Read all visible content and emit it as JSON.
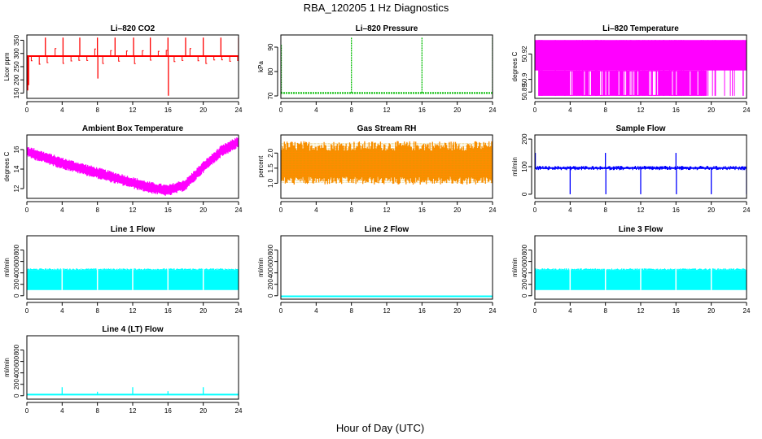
{
  "figure": {
    "title": "RBA_120205  1 Hz Diagnostics",
    "xlabel": "Hour of Day (UTC)"
  },
  "chart_data": [
    {
      "type": "line",
      "title": "Li–820 CO2",
      "ylabel": "Licor ppm",
      "color": "#ff0000",
      "xlim": [
        0,
        24
      ],
      "ylim": [
        130,
        370
      ],
      "yticks": [
        150,
        200,
        250,
        300,
        350
      ],
      "xticks": [
        0,
        4,
        8,
        12,
        16,
        20,
        24
      ],
      "baseline": 290,
      "band": [
        0,
        0
      ],
      "spikes": [
        [
          0.1,
          160
        ],
        [
          0.2,
          180
        ],
        [
          2.1,
          360
        ],
        [
          4.1,
          360
        ],
        [
          6.0,
          360
        ],
        [
          8.0,
          360
        ],
        [
          8.05,
          205
        ],
        [
          10.0,
          360
        ],
        [
          12.1,
          360
        ],
        [
          14.0,
          360
        ],
        [
          16.0,
          360
        ],
        [
          16.05,
          140
        ],
        [
          18.0,
          360
        ],
        [
          20.0,
          360
        ],
        [
          22.0,
          360
        ],
        [
          24.0,
          360
        ]
      ]
    },
    {
      "type": "line",
      "title": "Li–820 Pressure",
      "ylabel": "kPa",
      "color": "#00bb00",
      "xlim": [
        0,
        24
      ],
      "ylim": [
        69,
        95
      ],
      "yticks": [
        70,
        80,
        90
      ],
      "xticks": [
        0,
        4,
        8,
        12,
        16,
        20,
        24
      ],
      "baseline": 71.2,
      "band": [
        0,
        0
      ],
      "spikes": [
        [
          0.05,
          91
        ],
        [
          8.0,
          94
        ],
        [
          16.0,
          94
        ],
        [
          24.0,
          94
        ]
      ]
    },
    {
      "type": "area",
      "title": "Li–820 Temperature",
      "ylabel": "degrees C",
      "color": "#ff00ff",
      "xlim": [
        0,
        24
      ],
      "ylim": [
        50.885,
        50.935
      ],
      "yticks": [
        50.89,
        50.9,
        50.92
      ],
      "yticklabels": [
        "50.89",
        "50.9",
        "50.92"
      ],
      "xticks": [
        0,
        4,
        8,
        12,
        16,
        20,
        24
      ],
      "levels": [
        50.887,
        50.907,
        50.931
      ]
    },
    {
      "type": "area",
      "title": "Ambient Box Temperature",
      "ylabel": "degrees C",
      "color": "#ff00ff",
      "xlim": [
        0,
        24
      ],
      "ylim": [
        11,
        17.5
      ],
      "yticks": [
        12,
        14,
        16
      ],
      "xticks": [
        0,
        4,
        8,
        12,
        16,
        20,
        24
      ],
      "curve": [
        [
          0,
          15.8
        ],
        [
          2,
          15.2
        ],
        [
          4,
          14.6
        ],
        [
          6,
          14.1
        ],
        [
          8,
          13.6
        ],
        [
          10,
          13.1
        ],
        [
          12,
          12.6
        ],
        [
          14,
          12.1
        ],
        [
          16,
          11.8
        ],
        [
          18,
          12.4
        ],
        [
          20,
          14.2
        ],
        [
          22,
          15.8
        ],
        [
          24,
          16.8
        ]
      ],
      "band": [
        0.6,
        0.6
      ]
    },
    {
      "type": "area",
      "title": "Gas Stream RH",
      "ylabel": "percent",
      "color": "#ff8c00",
      "xlim": [
        0,
        24
      ],
      "ylim": [
        0.5,
        2.6
      ],
      "yticks": [
        1.0,
        1.5,
        2.0
      ],
      "yticklabels": [
        "1.0",
        "1.5",
        "2.0"
      ],
      "xticks": [
        0,
        4,
        8,
        12,
        16,
        20,
        24
      ],
      "curve": [
        [
          0,
          1.6
        ],
        [
          24,
          1.6
        ]
      ],
      "band": [
        0.8,
        0.65
      ]
    },
    {
      "type": "line",
      "title": "Sample Flow",
      "ylabel": "ml/min",
      "color": "#0000ff",
      "xlim": [
        0,
        24
      ],
      "ylim": [
        -15,
        215
      ],
      "yticks": [
        0,
        100,
        200
      ],
      "xticks": [
        0,
        4,
        8,
        12,
        16,
        20,
        24
      ],
      "baseline": 95,
      "band": [
        8,
        8
      ],
      "spikes": [
        [
          0.05,
          150
        ],
        [
          4.0,
          0
        ],
        [
          8.0,
          150
        ],
        [
          8.05,
          0
        ],
        [
          12.0,
          0
        ],
        [
          16.0,
          150
        ],
        [
          16.05,
          0
        ],
        [
          20.0,
          0
        ],
        [
          24.0,
          0
        ]
      ]
    },
    {
      "type": "area",
      "title": "Line 1 Flow",
      "ylabel": "ml/min",
      "color": "#00ffff",
      "xlim": [
        0,
        24
      ],
      "ylim": [
        -60,
        1050
      ],
      "yticks": [
        0,
        200,
        400,
        600,
        800
      ],
      "xticks": [
        0,
        4,
        8,
        12,
        16,
        20,
        24
      ],
      "range": [
        100,
        450
      ],
      "gaps": [
        4.0,
        8.0,
        12.0,
        16.0,
        20.0
      ]
    },
    {
      "type": "line",
      "title": "Line 2 Flow",
      "ylabel": "ml/min",
      "color": "#00ffff",
      "xlim": [
        0,
        24
      ],
      "ylim": [
        -60,
        1050
      ],
      "yticks": [
        0,
        200,
        400,
        600,
        800
      ],
      "xticks": [
        0,
        4,
        8,
        12,
        16,
        20,
        24
      ],
      "baseline": -10,
      "band": [
        0,
        0
      ],
      "spikes": []
    },
    {
      "type": "area",
      "title": "Line 3 Flow",
      "ylabel": "ml/min",
      "color": "#00ffff",
      "xlim": [
        0,
        24
      ],
      "ylim": [
        -60,
        1050
      ],
      "yticks": [
        0,
        200,
        400,
        600,
        800
      ],
      "xticks": [
        0,
        4,
        8,
        12,
        16,
        20,
        24
      ],
      "range": [
        100,
        450
      ],
      "gaps": [
        4.0,
        8.0,
        12.0,
        16.0,
        20.0
      ]
    },
    {
      "type": "line",
      "title": "Line 4 (LT) Flow",
      "ylabel": "ml/min",
      "color": "#00ffff",
      "xlim": [
        0,
        24
      ],
      "ylim": [
        -60,
        1050
      ],
      "yticks": [
        0,
        200,
        400,
        600,
        800
      ],
      "xticks": [
        0,
        4,
        8,
        12,
        16,
        20,
        24
      ],
      "baseline": 20,
      "band": [
        5,
        5
      ],
      "spikes": [
        [
          4.0,
          150
        ],
        [
          8.0,
          70
        ],
        [
          12.0,
          150
        ],
        [
          16.0,
          80
        ],
        [
          20.0,
          150
        ],
        [
          24.0,
          80
        ]
      ]
    }
  ]
}
